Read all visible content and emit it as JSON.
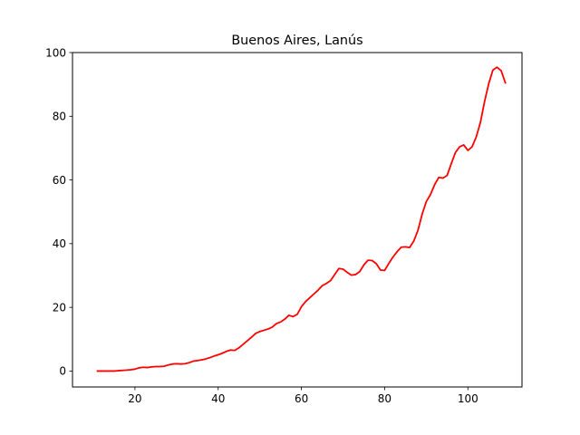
{
  "chart_data": {
    "type": "line",
    "title": "Buenos Aires, Lanús",
    "xlabel": "",
    "ylabel": "",
    "xlim": [
      5,
      113
    ],
    "ylim": [
      -5,
      100
    ],
    "x_ticks": [
      20,
      40,
      60,
      80,
      100
    ],
    "y_ticks": [
      0,
      20,
      40,
      60,
      80,
      100
    ],
    "grid": false,
    "series": [
      {
        "name": "Buenos Aires, Lanús",
        "color": "#ff0000",
        "x": [
          11,
          12,
          13,
          14,
          15,
          16,
          17,
          18,
          19,
          20,
          21,
          22,
          23,
          24,
          25,
          26,
          27,
          28,
          29,
          30,
          31,
          32,
          33,
          34,
          35,
          36,
          37,
          38,
          39,
          40,
          41,
          42,
          43,
          44,
          45,
          46,
          47,
          48,
          49,
          50,
          51,
          52,
          53,
          54,
          55,
          56,
          57,
          58,
          59,
          60,
          61,
          62,
          63,
          64,
          65,
          66,
          67,
          68,
          69,
          70,
          71,
          72,
          73,
          74,
          75,
          76,
          77,
          78,
          79,
          80,
          81,
          82,
          83,
          84,
          85,
          86,
          87,
          88,
          89,
          90,
          91,
          92,
          93,
          94,
          95,
          96,
          97,
          98,
          99,
          100,
          101,
          102,
          103,
          104,
          105,
          106,
          107,
          108,
          109
        ],
        "y": [
          0,
          0,
          0,
          0,
          0,
          0.1,
          0.2,
          0.3,
          0.4,
          0.6,
          1.0,
          1.2,
          1.1,
          1.3,
          1.4,
          1.4,
          1.5,
          1.9,
          2.2,
          2.3,
          2.2,
          2.3,
          2.6,
          3.1,
          3.3,
          3.5,
          3.8,
          4.2,
          4.7,
          5.1,
          5.6,
          6.2,
          6.6,
          6.5,
          7.3,
          8.4,
          9.5,
          10.6,
          11.8,
          12.4,
          12.8,
          13.2,
          13.8,
          14.9,
          15.4,
          16.3,
          17.5,
          17.1,
          17.8,
          20.2,
          21.8,
          23.0,
          24.2,
          25.4,
          26.8,
          27.5,
          28.4,
          30.3,
          32.2,
          32.0,
          31.0,
          30.1,
          30.3,
          31.2,
          33.3,
          34.8,
          34.7,
          33.7,
          31.7,
          31.6,
          33.8,
          35.8,
          37.5,
          38.9,
          39.0,
          38.8,
          40.8,
          44.2,
          49.2,
          53.2,
          55.4,
          58.5,
          60.8,
          60.6,
          61.4,
          65.1,
          68.6,
          70.4,
          71.0,
          69.3,
          70.4,
          73.5,
          78.0,
          84.6,
          90.2,
          94.5,
          95.4,
          94.3,
          90.5
        ]
      }
    ]
  }
}
